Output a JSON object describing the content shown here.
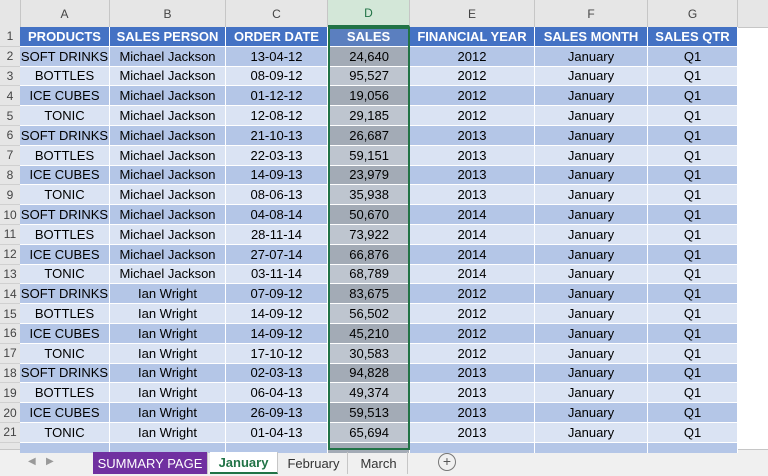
{
  "columns": [
    "A",
    "B",
    "C",
    "D",
    "E",
    "F",
    "G"
  ],
  "row_numbers": [
    "1",
    "2",
    "3",
    "4",
    "5",
    "6",
    "7",
    "8",
    "9",
    "10",
    "11",
    "12",
    "13",
    "14",
    "15",
    "16",
    "17",
    "18",
    "19",
    "20",
    "21"
  ],
  "table": {
    "header": [
      "PRODUCTS",
      "SALES PERSON",
      "ORDER DATE",
      "SALES",
      "FINANCIAL YEAR",
      "SALES MONTH",
      "SALES QTR"
    ],
    "rows": [
      [
        "SOFT DRINKS",
        "Michael Jackson",
        "13-04-12",
        "24,640",
        "2012",
        "January",
        "Q1"
      ],
      [
        "BOTTLES",
        "Michael Jackson",
        "08-09-12",
        "95,527",
        "2012",
        "January",
        "Q1"
      ],
      [
        "ICE CUBES",
        "Michael Jackson",
        "01-12-12",
        "19,056",
        "2012",
        "January",
        "Q1"
      ],
      [
        "TONIC",
        "Michael Jackson",
        "12-08-12",
        "29,185",
        "2012",
        "January",
        "Q1"
      ],
      [
        "SOFT DRINKS",
        "Michael Jackson",
        "21-10-13",
        "26,687",
        "2013",
        "January",
        "Q1"
      ],
      [
        "BOTTLES",
        "Michael Jackson",
        "22-03-13",
        "59,151",
        "2013",
        "January",
        "Q1"
      ],
      [
        "ICE CUBES",
        "Michael Jackson",
        "14-09-13",
        "23,979",
        "2013",
        "January",
        "Q1"
      ],
      [
        "TONIC",
        "Michael Jackson",
        "08-06-13",
        "35,938",
        "2013",
        "January",
        "Q1"
      ],
      [
        "SOFT DRINKS",
        "Michael Jackson",
        "04-08-14",
        "50,670",
        "2014",
        "January",
        "Q1"
      ],
      [
        "BOTTLES",
        "Michael Jackson",
        "28-11-14",
        "73,922",
        "2014",
        "January",
        "Q1"
      ],
      [
        "ICE CUBES",
        "Michael Jackson",
        "27-07-14",
        "66,876",
        "2014",
        "January",
        "Q1"
      ],
      [
        "TONIC",
        "Michael Jackson",
        "03-11-14",
        "68,789",
        "2014",
        "January",
        "Q1"
      ],
      [
        "SOFT DRINKS",
        "Ian Wright",
        "07-09-12",
        "83,675",
        "2012",
        "January",
        "Q1"
      ],
      [
        "BOTTLES",
        "Ian Wright",
        "14-09-12",
        "56,502",
        "2012",
        "January",
        "Q1"
      ],
      [
        "ICE CUBES",
        "Ian Wright",
        "14-09-12",
        "45,210",
        "2012",
        "January",
        "Q1"
      ],
      [
        "TONIC",
        "Ian Wright",
        "17-10-12",
        "30,583",
        "2012",
        "January",
        "Q1"
      ],
      [
        "SOFT DRINKS",
        "Ian Wright",
        "02-03-13",
        "94,828",
        "2013",
        "January",
        "Q1"
      ],
      [
        "BOTTLES",
        "Ian Wright",
        "06-04-13",
        "49,374",
        "2013",
        "January",
        "Q1"
      ],
      [
        "ICE CUBES",
        "Ian Wright",
        "26-09-13",
        "59,513",
        "2013",
        "January",
        "Q1"
      ],
      [
        "TONIC",
        "Ian Wright",
        "01-04-13",
        "65,694",
        "2013",
        "January",
        "Q1"
      ]
    ]
  },
  "tabs": [
    "SUMMARY PAGE",
    "January",
    "February",
    "March"
  ]
}
